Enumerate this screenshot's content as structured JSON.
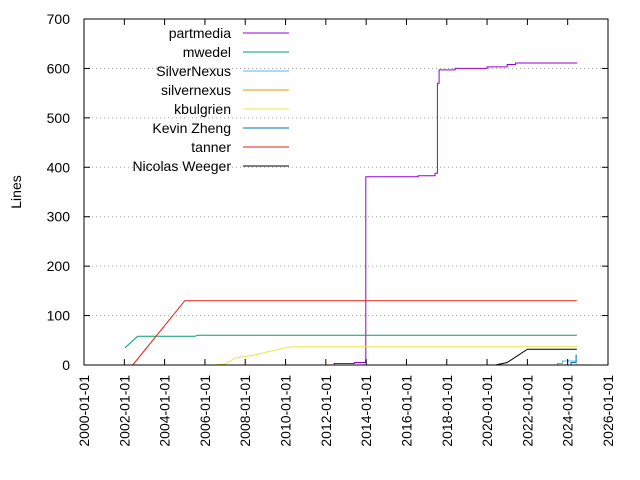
{
  "chart_data": {
    "type": "line",
    "title": "",
    "xlabel": "",
    "ylabel": "Lines",
    "x_type": "date",
    "xlim": [
      "2000-01-01",
      "2026-01-01"
    ],
    "ylim": [
      0,
      700
    ],
    "x_ticks": [
      "2000-01-01",
      "2002-01-01",
      "2004-01-01",
      "2006-01-01",
      "2008-01-01",
      "2010-01-01",
      "2012-01-01",
      "2014-01-01",
      "2016-01-01",
      "2018-01-01",
      "2020-01-01",
      "2022-01-01",
      "2024-01-01",
      "2026-01-01"
    ],
    "y_ticks": [
      "0",
      "100",
      "200",
      "300",
      "400",
      "500",
      "600",
      "700"
    ],
    "grid": "horizontal dotted",
    "legend_position": "top-left",
    "series": [
      {
        "name": "partmedia",
        "color": "#9400d3",
        "step": true,
        "points": [
          [
            "2011-07-01",
            0
          ],
          [
            "2012-06-01",
            3
          ],
          [
            "2013-06-01",
            5
          ],
          [
            "2013-12-20",
            8
          ],
          [
            "2013-12-25",
            381
          ],
          [
            "2016-01-01",
            381
          ],
          [
            "2016-08-01",
            383
          ],
          [
            "2017-06-01",
            388
          ],
          [
            "2017-07-15",
            570
          ],
          [
            "2017-08-15",
            597
          ],
          [
            "2018-06-01",
            600
          ],
          [
            "2020-01-01",
            603
          ],
          [
            "2021-01-01",
            608
          ],
          [
            "2021-06-01",
            611
          ],
          [
            "2024-06-15",
            612
          ]
        ]
      },
      {
        "name": "mwedel",
        "color": "#009e73",
        "step": false,
        "points": [
          [
            "2002-01-15",
            35
          ],
          [
            "2002-09-01",
            58
          ],
          [
            "2005-07-01",
            58
          ],
          [
            "2005-09-01",
            60
          ],
          [
            "2024-06-15",
            60
          ]
        ]
      },
      {
        "name": "SilverNexus",
        "color": "#56b4e9",
        "step": true,
        "points": [
          [
            "2023-01-01",
            0
          ],
          [
            "2023-07-01",
            3
          ],
          [
            "2023-10-01",
            8
          ],
          [
            "2024-06-15",
            8
          ]
        ]
      },
      {
        "name": "silvernexus",
        "color": "#e69f00",
        "step": true,
        "points": [
          [
            "2023-07-01",
            0
          ],
          [
            "2024-06-15",
            2
          ]
        ]
      },
      {
        "name": "kbulgrien",
        "color": "#f0e442",
        "step": false,
        "points": [
          [
            "2006-06-01",
            0
          ],
          [
            "2007-01-01",
            2
          ],
          [
            "2007-07-01",
            14
          ],
          [
            "2008-06-01",
            20
          ],
          [
            "2010-01-01",
            35
          ],
          [
            "2010-06-01",
            37
          ],
          [
            "2024-06-15",
            37
          ]
        ]
      },
      {
        "name": "Kevin Zheng",
        "color": "#0072b2",
        "step": true,
        "points": [
          [
            "2023-06-01",
            0
          ],
          [
            "2024-03-01",
            5
          ],
          [
            "2024-06-01",
            20
          ],
          [
            "2024-06-15",
            20
          ]
        ]
      },
      {
        "name": "tanner",
        "color": "#e51e10",
        "step": false,
        "points": [
          [
            "2002-06-01",
            0
          ],
          [
            "2005-01-01",
            130
          ],
          [
            "2024-06-15",
            130
          ]
        ]
      },
      {
        "name": "Nicolas Weeger",
        "color": "#000000",
        "step": false,
        "points": [
          [
            "2020-06-01",
            0
          ],
          [
            "2021-01-01",
            5
          ],
          [
            "2022-01-01",
            32
          ],
          [
            "2024-06-15",
            32
          ]
        ]
      }
    ]
  }
}
